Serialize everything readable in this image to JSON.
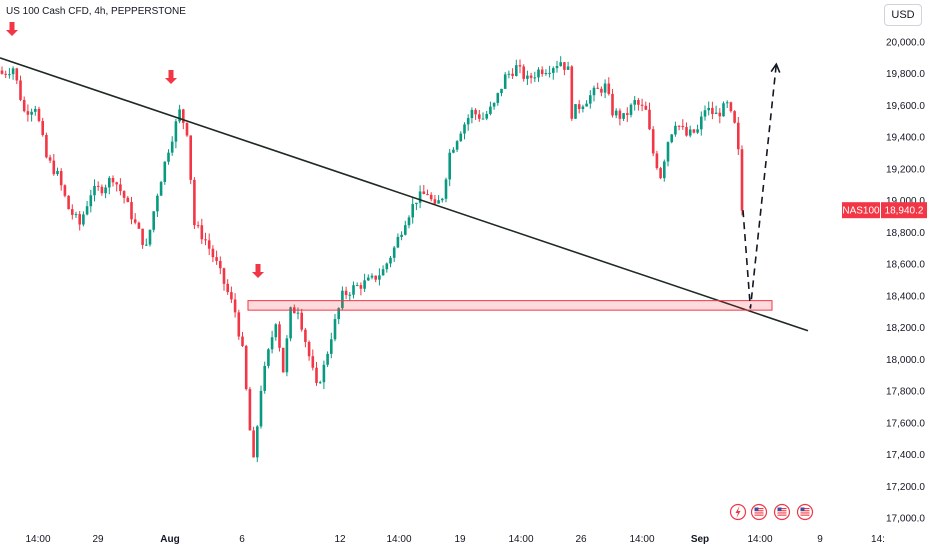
{
  "header": {
    "title": "US 100 Cash CFD, 4h, PEPPERSTONE",
    "currency_button": "USD"
  },
  "colors": {
    "up": "#089981",
    "down": "#f23645",
    "trendline": "#1e2a22",
    "zone_fill": "rgba(242,54,69,0.18)",
    "zone_border": "#f23645",
    "arrow": "#f23645",
    "projection": "#131722",
    "axis_text": "#131722"
  },
  "chart_data": {
    "type": "candlestick",
    "symbol": "NAS100",
    "last_price": "18,940.2",
    "y_ticks": [
      "20,000.0",
      "19,800.0",
      "19,600.0",
      "19,400.0",
      "19,200.0",
      "19,000.0",
      "18,800.0",
      "18,600.0",
      "18,400.0",
      "18,200.0",
      "18,000.0",
      "17,800.0",
      "17,600.0",
      "17,400.0",
      "17,200.0",
      "17,000.0"
    ],
    "y_tick_values": [
      20000,
      19800,
      19600,
      19400,
      19200,
      19000,
      18800,
      18600,
      18400,
      18200,
      18000,
      17800,
      17600,
      17400,
      17200,
      17000
    ],
    "ylim": [
      17000,
      20000
    ],
    "x_ticks": [
      "14:00",
      "29",
      "Aug",
      "6",
      "12",
      "14:00",
      "19",
      "14:00",
      "26",
      "14:00",
      "Sep",
      "14:00",
      "9",
      "14:"
    ],
    "x_tick_bold": [
      false,
      false,
      true,
      false,
      false,
      false,
      false,
      false,
      false,
      false,
      true,
      false,
      false,
      false
    ],
    "close_path": [
      [
        0,
        19800
      ],
      [
        3,
        19840
      ],
      [
        6,
        19560
      ],
      [
        9,
        19600
      ],
      [
        12,
        19270
      ],
      [
        15,
        19160
      ],
      [
        18,
        18950
      ],
      [
        21,
        18850
      ],
      [
        24,
        19050
      ],
      [
        27,
        19080
      ],
      [
        30,
        19150
      ],
      [
        33,
        19020
      ],
      [
        36,
        18850
      ],
      [
        39,
        18700
      ],
      [
        42,
        19050
      ],
      [
        45,
        19330
      ],
      [
        48,
        19560
      ],
      [
        50,
        19440
      ],
      [
        52,
        18850
      ],
      [
        55,
        18750
      ],
      [
        58,
        18600
      ],
      [
        61,
        18420
      ],
      [
        63,
        18300
      ],
      [
        65,
        18050
      ],
      [
        67,
        17550
      ],
      [
        68,
        17350
      ],
      [
        70,
        17820
      ],
      [
        72,
        18040
      ],
      [
        74,
        18250
      ],
      [
        76,
        17930
      ],
      [
        78,
        18300
      ],
      [
        80,
        18320
      ],
      [
        82,
        18120
      ],
      [
        85,
        17820
      ],
      [
        87,
        17950
      ],
      [
        89,
        18150
      ],
      [
        92,
        18400
      ],
      [
        95,
        18450
      ],
      [
        98,
        18480
      ],
      [
        100,
        18500
      ],
      [
        103,
        18560
      ],
      [
        106,
        18700
      ],
      [
        109,
        18880
      ],
      [
        112,
        19010
      ],
      [
        115,
        19050
      ],
      [
        117,
        18950
      ],
      [
        119,
        19030
      ],
      [
        121,
        19300
      ],
      [
        124,
        19450
      ],
      [
        127,
        19560
      ],
      [
        130,
        19520
      ],
      [
        133,
        19600
      ],
      [
        136,
        19780
      ],
      [
        139,
        19840
      ],
      [
        142,
        19760
      ],
      [
        145,
        19820
      ],
      [
        148,
        19840
      ],
      [
        151,
        19880
      ],
      [
        153,
        19820
      ],
      [
        154,
        19550
      ],
      [
        157,
        19620
      ],
      [
        160,
        19680
      ],
      [
        163,
        19720
      ],
      [
        165,
        19560
      ],
      [
        168,
        19520
      ],
      [
        171,
        19620
      ],
      [
        174,
        19560
      ],
      [
        176,
        19300
      ],
      [
        178,
        19160
      ],
      [
        180,
        19380
      ],
      [
        182,
        19500
      ],
      [
        185,
        19410
      ],
      [
        188,
        19440
      ],
      [
        190,
        19580
      ],
      [
        193,
        19540
      ],
      [
        196,
        19600
      ],
      [
        198,
        19470
      ],
      [
        199,
        19300
      ],
      [
        200,
        18940
      ]
    ],
    "markers": [
      "arrow-down-1",
      "arrow-down-2",
      "arrow-down-3"
    ],
    "projection": [
      [
        200,
        18940
      ],
      [
        202,
        18320
      ],
      [
        209,
        19860
      ]
    ]
  },
  "toolbar_icons": [
    "lightning-icon",
    "flag-us-icon-1",
    "flag-us-icon-2",
    "flag-us-icon-3"
  ]
}
